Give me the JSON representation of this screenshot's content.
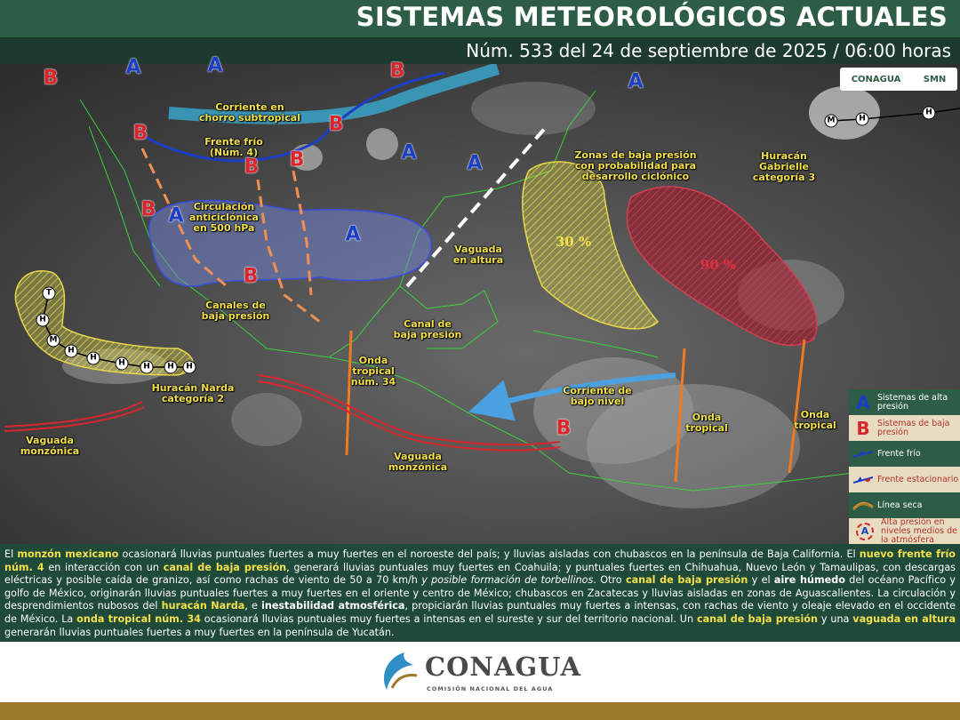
{
  "header": {
    "title": "SISTEMAS METEOROLÓGICOS ACTUALES",
    "subtitle": "Núm. 533 del 24 de septiembre de 2025 / 06:00 horas",
    "logos": [
      "CONAGUA",
      "SMN"
    ]
  },
  "map": {
    "labels": [
      "Corriente en\nchorro subtropical",
      "Frente frío\n(Núm. 4)",
      "Circulación\nanticiclónica\nen 500 hPa",
      "Canales de\nbaja presión",
      "Zonas de baja presión\ncon probabilidad para\ndesarrollo ciclónico",
      "Huracán\nGabrielle\ncategoría 3",
      "Vaguada\nen altura",
      "Canal de\nbaja presión",
      "Onda\ntropical\nnúm. 34",
      "Huracán Narda\ncategoría 2",
      "Corriente de\nbajo nivel",
      "Onda\ntropical",
      "Onda\ntropical",
      "Vaguada\nmonzónica",
      "Vaguada\nmonzónica"
    ],
    "pressure_marks": [
      "B",
      "A",
      "A",
      "B",
      "A",
      "B",
      "B",
      "A",
      "A",
      "B",
      "B",
      "B",
      "A",
      "A",
      "B",
      "B"
    ],
    "percentages": [
      "30 %",
      "90 %"
    ],
    "track_marks": [
      "T",
      "H",
      "M",
      "H",
      "H",
      "H",
      "H",
      "H",
      "H",
      "M",
      "H",
      "H"
    ]
  },
  "legend": [
    {
      "symbol": "A",
      "label": "Sistemas de alta presión"
    },
    {
      "symbol": "B",
      "label": "Sistemas de baja presión"
    },
    {
      "label": "Frente frío"
    },
    {
      "label": "Frente estacionario"
    },
    {
      "label": "Línea seca"
    },
    {
      "symbol": "A",
      "label": "Alta presión en niveles medios de la atmósfera"
    }
  ],
  "bulletin": {
    "segments": [
      "El ",
      {
        "strong": "monzón mexicano"
      },
      " ocasionará lluvias puntuales fuertes a muy fuertes en el noroeste del país; y lluvias aisladas con chubascos en la península de Baja California. El ",
      {
        "strong": "nuevo frente frío núm. 4"
      },
      " en interacción con un ",
      {
        "strong": "canal de baja presión"
      },
      ", generará lluvias puntuales muy fuertes en Coahuila; y puntuales fuertes en Chihuahua, Nuevo León y Tamaulipas, con descargas eléctricas y posible caída de granizo, así como rachas de viento de 50 a 70 km/h ",
      {
        "em": "y posible formación de torbellinos"
      },
      ". Otro ",
      {
        "strong": "canal de baja presión"
      },
      " y el ",
      {
        "bold": "aire húmedo"
      },
      " del océano Pacífico y golfo de México, originarán lluvias puntuales fuertes a muy fuertes en el oriente y centro de México; chubascos en Zacatecas y lluvias aisladas en zonas de Aguascalientes. La circulación y desprendimientos nubosos del ",
      {
        "strong": "huracán Narda"
      },
      ", e ",
      {
        "bold": "inestabilidad atmosférica"
      },
      ", propiciarán lluvias puntuales muy fuertes a intensas, con rachas de viento y oleaje elevado en el occidente de México. La ",
      {
        "strong": "onda tropical núm. 34"
      },
      " ocasionará lluvias puntuales muy fuertes a intensas en el sureste y sur del territorio nacional. Un ",
      {
        "strong": "canal de baja presión"
      },
      " y una ",
      {
        "strong": "vaguada en altura"
      },
      " generarán lluvias puntuales fuertes a muy fuertes en la península de Yucatán."
    ]
  },
  "footer": {
    "logo": "CONAGUA",
    "tagline": "COMISIÓN NACIONAL DEL AGUA"
  }
}
